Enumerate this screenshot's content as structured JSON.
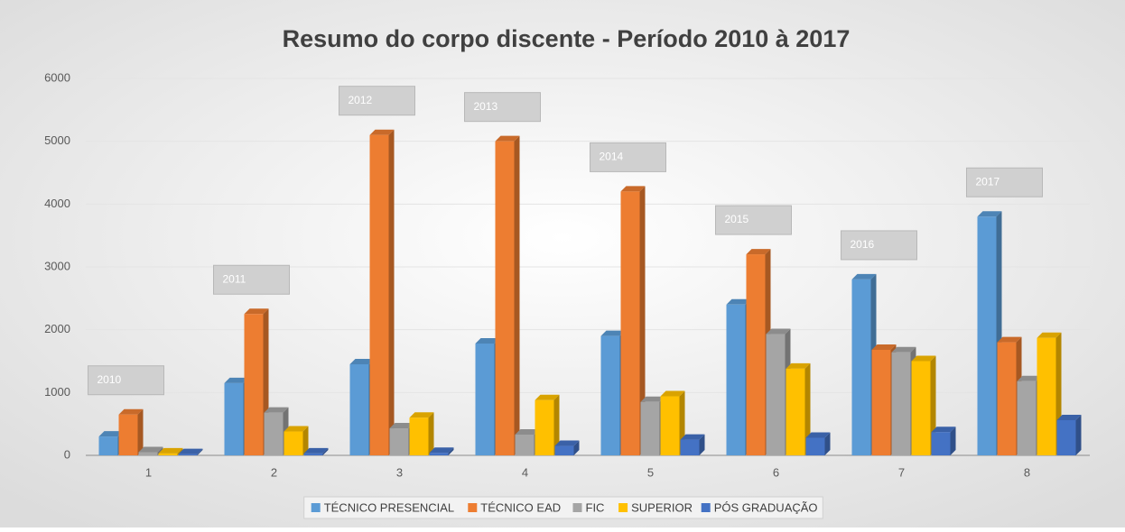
{
  "chart_data": {
    "type": "bar",
    "title": "Resumo do corpo discente - Período 2010 à 2017",
    "categories": [
      "1",
      "2",
      "3",
      "4",
      "5",
      "6",
      "7",
      "8"
    ],
    "series": [
      {
        "name": "TÉCNICO PRESENCIAL",
        "color": "#5b9bd5",
        "values": [
          300,
          1150,
          1450,
          1780,
          1900,
          2400,
          2800,
          3800
        ]
      },
      {
        "name": "TÉCNICO EAD",
        "color": "#ed7d31",
        "values": [
          650,
          2250,
          5100,
          5000,
          4200,
          3200,
          1680,
          1800
        ]
      },
      {
        "name": "FIC",
        "color": "#a5a5a5",
        "values": [
          50,
          680,
          430,
          330,
          850,
          1930,
          1640,
          1180
        ]
      },
      {
        "name": "SUPERIOR",
        "color": "#ffc000",
        "values": [
          30,
          380,
          600,
          880,
          940,
          1380,
          1500,
          1870
        ]
      },
      {
        "name": "PÓS GRADUAÇÃO",
        "color": "#4472c4",
        "values": [
          20,
          30,
          40,
          150,
          250,
          280,
          370,
          560
        ]
      }
    ],
    "annotations": [
      "2010",
      "2011",
      "2012",
      "2013",
      "2014",
      "2015",
      "2016",
      "2017"
    ],
    "ylim": [
      0,
      6000
    ],
    "yticks": [
      0,
      1000,
      2000,
      3000,
      4000,
      5000,
      6000
    ],
    "grid": true,
    "legend": "bottom"
  }
}
